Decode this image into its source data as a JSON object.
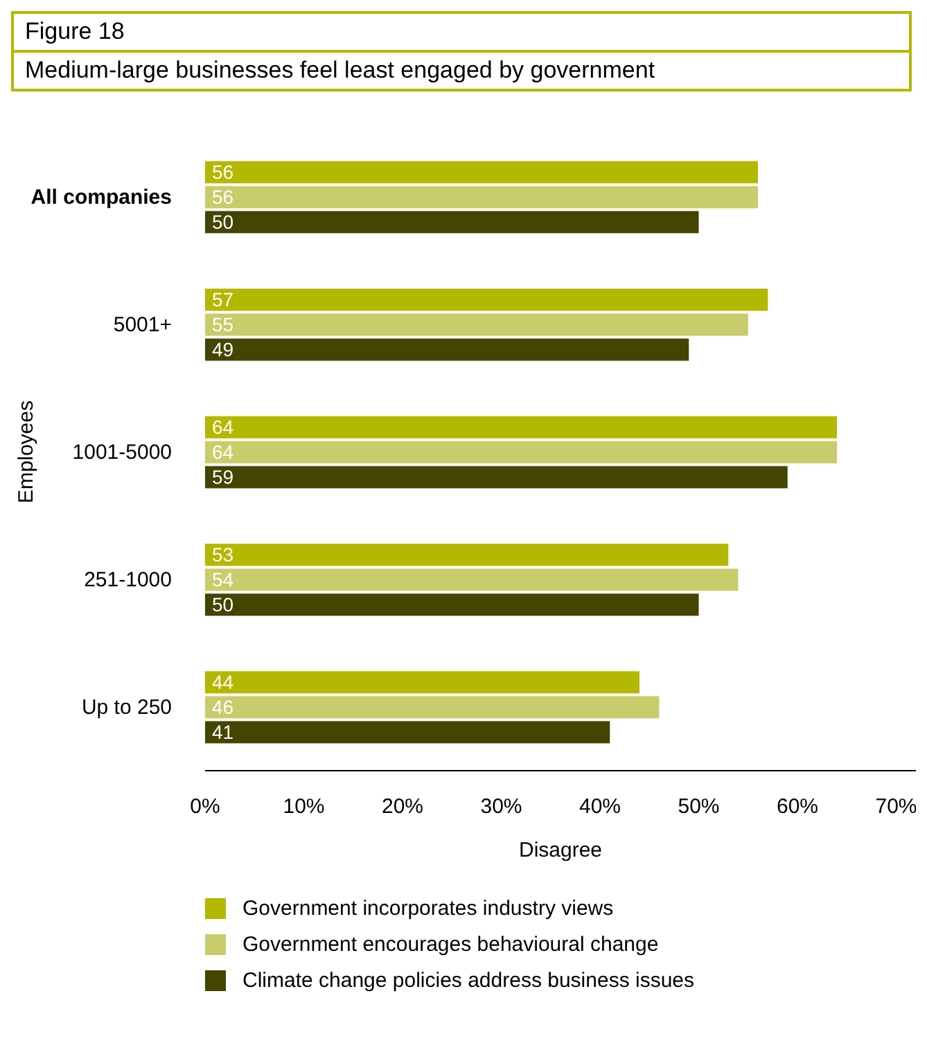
{
  "chart_data": {
    "type": "bar",
    "orientation": "horizontal",
    "title": "Figure 18",
    "subtitle": "Medium-large businesses feel least engaged by government",
    "xlabel": "Disagree",
    "ylabel": "Employees",
    "categories": [
      "All companies",
      "5001+",
      "1001-5000",
      "251-1000",
      "Up to 250"
    ],
    "series": [
      {
        "name": "Government incorporates industry views",
        "color": "#b3b800",
        "values": [
          56,
          57,
          64,
          53,
          44
        ]
      },
      {
        "name": "Government encourages behavioural change",
        "color": "#c9cc6b",
        "values": [
          56,
          55,
          64,
          54,
          46
        ]
      },
      {
        "name": "Climate change policies address business issues",
        "color": "#434500",
        "values": [
          50,
          49,
          59,
          50,
          41
        ]
      }
    ],
    "xlim": [
      0,
      72
    ],
    "xticks": [
      {
        "value": 0,
        "label": "0%"
      },
      {
        "value": 10,
        "label": "10%"
      },
      {
        "value": 20,
        "label": "20%"
      },
      {
        "value": 30,
        "label": "30%"
      },
      {
        "value": 40,
        "label": "40%"
      },
      {
        "value": 50,
        "label": "50%"
      },
      {
        "value": 60,
        "label": "60%"
      },
      {
        "value": 70,
        "label": "70%"
      }
    ],
    "data_labels": true,
    "grid": false,
    "legend": "bottom"
  }
}
